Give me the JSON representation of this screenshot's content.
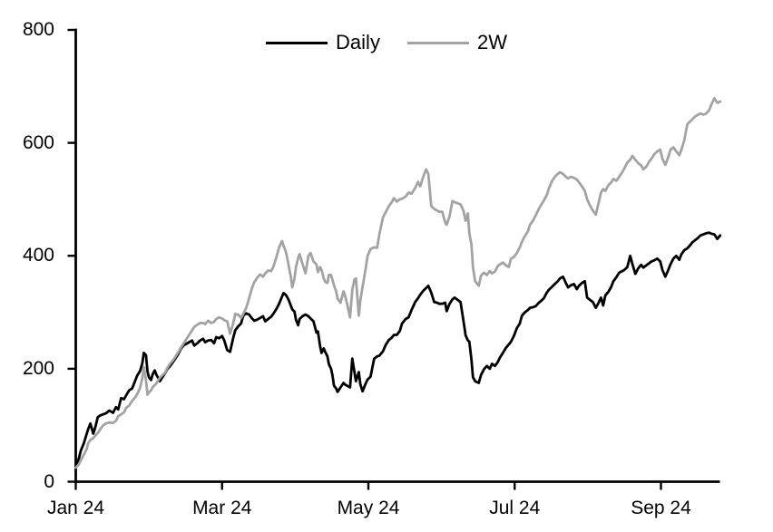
{
  "chart_data": {
    "type": "line",
    "title": "",
    "legend_position": "top-center",
    "grid": false,
    "x_axis": {
      "unit": "months since Jan 2024",
      "tick_labels": [
        "Jan 24",
        "Mar 24",
        "May 24",
        "Jul 24",
        "Sep 24"
      ],
      "tick_months": [
        0,
        2,
        4,
        6,
        8
      ],
      "range_months": [
        0,
        8.83
      ]
    },
    "y_axis": {
      "ticks": [
        0,
        200,
        400,
        600,
        800
      ],
      "tick_labels": [
        "0",
        "200",
        "400",
        "600",
        "800"
      ],
      "range": [
        0,
        800
      ]
    },
    "x_months": [
      0,
      0.04,
      0.07,
      0.11,
      0.15,
      0.17,
      0.2,
      0.24,
      0.27,
      0.3,
      0.33,
      0.37,
      0.41,
      0.46,
      0.51,
      0.55,
      0.58,
      0.62,
      0.66,
      0.69,
      0.73,
      0.77,
      0.81,
      0.84,
      0.88,
      0.91,
      0.93,
      0.96,
      0.98,
      1,
      1.03,
      1.05,
      1.08,
      1.1,
      1.13,
      1.15,
      1.18,
      1.22,
      1.25,
      1.29,
      1.33,
      1.36,
      1.4,
      1.44,
      1.48,
      1.51,
      1.55,
      1.59,
      1.62,
      1.66,
      1.7,
      1.74,
      1.77,
      1.81,
      1.85,
      1.89,
      1.92,
      1.96,
      2,
      2.03,
      2.07,
      2.11,
      2.15,
      2.18,
      2.22,
      2.26,
      2.29,
      2.33,
      2.37,
      2.41,
      2.44,
      2.48,
      2.52,
      2.56,
      2.59,
      2.63,
      2.67,
      2.7,
      2.74,
      2.78,
      2.82,
      2.84,
      2.87,
      2.89,
      2.91,
      2.94,
      2.96,
      2.99,
      3.01,
      3.04,
      3.06,
      3.1,
      3.14,
      3.18,
      3.21,
      3.25,
      3.29,
      3.31,
      3.34,
      3.36,
      3.39,
      3.41,
      3.44,
      3.46,
      3.49,
      3.51,
      3.53,
      3.56,
      3.58,
      3.62,
      3.66,
      3.68,
      3.71,
      3.75,
      3.78,
      3.81,
      3.83,
      3.87,
      3.89,
      3.92,
      3.96,
      3.99,
      4.03,
      4.08,
      4.12,
      4.15,
      4.2,
      4.24,
      4.28,
      4.32,
      4.35,
      4.39,
      4.43,
      4.46,
      4.51,
      4.55,
      4.59,
      4.64,
      4.68,
      4.71,
      4.75,
      4.79,
      4.82,
      4.86,
      4.9,
      4.94,
      4.97,
      5.01,
      5.05,
      5.07,
      5.11,
      5.15,
      5.18,
      5.22,
      5.26,
      5.3,
      5.33,
      5.36,
      5.38,
      5.41,
      5.43,
      5.46,
      5.51,
      5.54,
      5.58,
      5.62,
      5.66,
      5.69,
      5.73,
      5.77,
      5.8,
      5.84,
      5.88,
      5.92,
      5.95,
      5.99,
      6.03,
      6.07,
      6.1,
      6.14,
      6.18,
      6.21,
      6.25,
      6.29,
      6.33,
      6.36,
      6.4,
      6.44,
      6.47,
      6.51,
      6.55,
      6.59,
      6.62,
      6.66,
      6.7,
      6.73,
      6.77,
      6.81,
      6.85,
      6.88,
      6.92,
      6.96,
      6.99,
      7.03,
      7.07,
      7.11,
      7.14,
      7.18,
      7.21,
      7.24,
      7.28,
      7.32,
      7.35,
      7.39,
      7.43,
      7.47,
      7.5,
      7.54,
      7.58,
      7.61,
      7.65,
      7.69,
      7.73,
      7.76,
      7.8,
      7.84,
      7.87,
      7.91,
      7.95,
      7.99,
      8.02,
      8.06,
      8.1,
      8.13,
      8.17,
      8.21,
      8.25,
      8.28,
      8.32,
      8.36,
      8.4,
      8.43,
      8.47,
      8.51,
      8.54,
      8.58,
      8.62,
      8.66,
      8.69,
      8.73,
      8.77,
      8.81
    ],
    "series": [
      {
        "name": "Daily",
        "color": "#000000",
        "values": [
          28,
          40,
          55,
          68,
          85,
          93,
          103,
          85,
          98,
          114,
          117,
          119,
          121,
          126,
          122,
          132,
          128,
          148,
          146,
          153,
          162,
          165,
          178,
          188,
          196,
          210,
          228,
          224,
          196,
          185,
          180,
          190,
          197,
          190,
          183,
          178,
          184,
          192,
          199,
          205,
          212,
          218,
          226,
          236,
          242,
          244,
          247,
          250,
          241,
          245,
          250,
          253,
          247,
          250,
          251,
          245,
          256,
          254,
          258,
          250,
          233,
          230,
          253,
          268,
          275,
          280,
          294,
          298,
          296,
          289,
          285,
          287,
          290,
          293,
          284,
          288,
          292,
          297,
          305,
          315,
          328,
          334,
          331,
          327,
          322,
          312,
          305,
          301,
          287,
          277,
          288,
          293,
          296,
          293,
          289,
          284,
          264,
          266,
          240,
          228,
          236,
          230,
          222,
          208,
          200,
          188,
          170,
          165,
          159,
          167,
          175,
          172,
          170,
          167,
          218,
          194,
          178,
          194,
          173,
          160,
          173,
          181,
          186,
          218,
          222,
          223,
          231,
          243,
          251,
          255,
          260,
          260,
          267,
          280,
          288,
          291,
          304,
          318,
          325,
          331,
          338,
          343,
          347,
          335,
          318,
          317,
          315,
          315,
          317,
          302,
          315,
          323,
          326,
          322,
          318,
          285,
          259,
          250,
          248,
          215,
          185,
          178,
          175,
          189,
          199,
          205,
          200,
          209,
          205,
          212,
          220,
          228,
          237,
          243,
          248,
          258,
          272,
          280,
          294,
          300,
          304,
          308,
          309,
          311,
          317,
          320,
          325,
          335,
          340,
          345,
          350,
          355,
          360,
          363,
          352,
          344,
          348,
          350,
          341,
          347,
          352,
          355,
          326,
          322,
          318,
          308,
          315,
          326,
          312,
          330,
          336,
          345,
          355,
          362,
          370,
          373,
          375,
          380,
          400,
          385,
          368,
          378,
          384,
          379,
          383,
          387,
          390,
          392,
          395,
          390,
          375,
          363,
          375,
          385,
          395,
          400,
          393,
          403,
          410,
          413,
          419,
          424,
          428,
          432,
          436,
          438,
          440,
          441,
          439,
          438,
          430,
          436
        ]
      },
      {
        "name": "2W",
        "color": "#a3a3a3",
        "values": [
          25,
          30,
          38,
          48,
          58,
          68,
          74,
          77,
          82,
          86,
          92,
          99,
          103,
          105,
          104,
          108,
          116,
          119,
          123,
          131,
          135,
          143,
          149,
          155,
          166,
          184,
          203,
          180,
          154,
          158,
          162,
          167,
          171,
          174,
          180,
          184,
          188,
          193,
          201,
          209,
          215,
          221,
          229,
          238,
          246,
          252,
          260,
          268,
          274,
          278,
          281,
          281,
          279,
          285,
          281,
          283,
          288,
          291,
          289,
          286,
          284,
          262,
          279,
          297,
          296,
          290,
          297,
          308,
          325,
          343,
          353,
          361,
          367,
          363,
          369,
          374,
          373,
          380,
          396,
          415,
          426,
          418,
          408,
          397,
          383,
          363,
          344,
          360,
          380,
          396,
          403,
          386,
          369,
          400,
          405,
          390,
          385,
          371,
          380,
          375,
          360,
          354,
          352,
          366,
          366,
          357,
          348,
          337,
          324,
          317,
          337,
          330,
          315,
          291,
          340,
          358,
          360,
          294,
          320,
          345,
          375,
          400,
          412,
          415,
          414,
          438,
          468,
          478,
          488,
          495,
          502,
          496,
          500,
          501,
          505,
          512,
          510,
          520,
          531,
          523,
          540,
          553,
          545,
          488,
          483,
          480,
          478,
          478,
          459,
          455,
          470,
          497,
          495,
          493,
          491,
          480,
          462,
          475,
          440,
          419,
          380,
          355,
          347,
          365,
          370,
          366,
          373,
          369,
          372,
          382,
          385,
          388,
          383,
          380,
          395,
          398,
          405,
          415,
          425,
          435,
          443,
          455,
          462,
          472,
          483,
          490,
          498,
          508,
          520,
          532,
          540,
          545,
          548,
          545,
          540,
          537,
          540,
          538,
          535,
          530,
          523,
          515,
          500,
          489,
          480,
          473,
          490,
          512,
          518,
          515,
          525,
          530,
          536,
          533,
          540,
          548,
          555,
          565,
          570,
          577,
          570,
          564,
          560,
          553,
          558,
          567,
          572,
          580,
          585,
          588,
          572,
          561,
          575,
          588,
          592,
          585,
          578,
          588,
          605,
          633,
          638,
          642,
          647,
          650,
          652,
          650,
          652,
          658,
          668,
          679,
          671,
          673
        ]
      }
    ]
  },
  "legend": {
    "daily_label": "Daily",
    "tw_label": "2W"
  }
}
